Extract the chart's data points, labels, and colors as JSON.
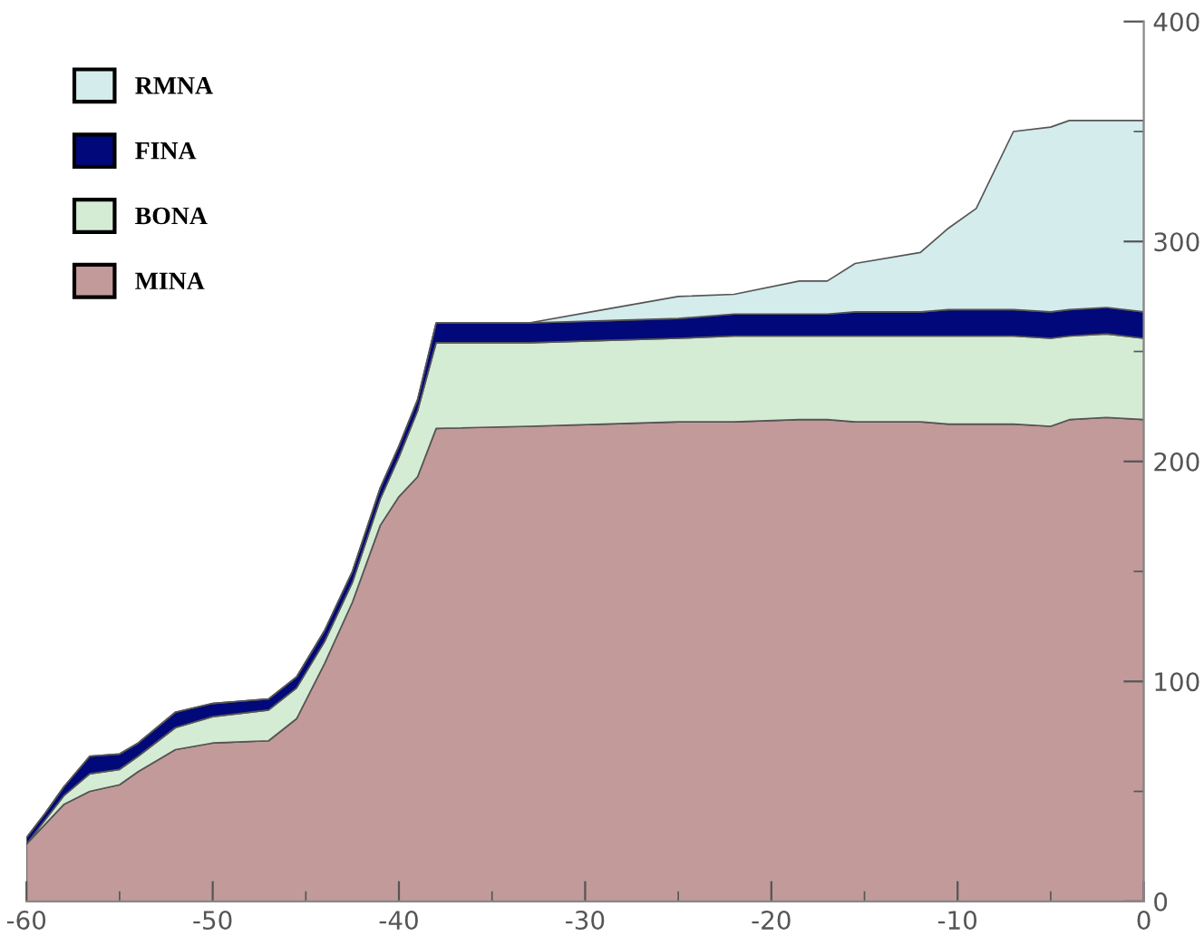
{
  "chart_data": {
    "type": "area",
    "stacked": true,
    "x": [
      -60,
      -59,
      -58,
      -56.6,
      -55,
      -54,
      -52,
      -50,
      -47,
      -45.5,
      -44,
      -42.5,
      -41,
      -40,
      -39,
      -38,
      -33,
      -29,
      -25,
      -22,
      -18.5,
      -17,
      -15.5,
      -12,
      -10.5,
      -9,
      -7,
      -5,
      -4,
      -2,
      0
    ],
    "series": [
      {
        "name": "MINA",
        "color": "#c29a9a",
        "values": [
          26,
          35,
          44,
          50,
          53,
          59,
          69,
          72,
          73,
          83,
          108,
          136,
          171,
          184,
          193,
          215,
          216,
          217,
          218,
          218,
          219,
          219,
          218,
          218,
          217,
          217,
          217,
          216,
          219,
          220,
          219
        ]
      },
      {
        "name": "BONA",
        "color": "#d4ecd4",
        "values": [
          0,
          2,
          4,
          8,
          7,
          7,
          10,
          12,
          14,
          14,
          10,
          9,
          12,
          18,
          30,
          39,
          38,
          38,
          38,
          39,
          38,
          38,
          39,
          39,
          40,
          40,
          40,
          40,
          38,
          38,
          37
        ]
      },
      {
        "name": "FINA",
        "color": "#00087a",
        "values": [
          3,
          3,
          4,
          8,
          7,
          6,
          7,
          6,
          5,
          5,
          5,
          5,
          5,
          5,
          5,
          9,
          9,
          9,
          9,
          10,
          10,
          10,
          11,
          11,
          12,
          12,
          12,
          12,
          12,
          12,
          12
        ]
      },
      {
        "name": "RMNA",
        "color": "#d4ecec",
        "values": [
          0,
          0,
          0,
          0,
          0,
          0,
          0,
          0,
          0,
          0,
          0,
          0,
          0,
          0,
          0,
          0,
          0,
          5,
          10,
          9,
          15,
          15,
          22,
          27,
          37,
          46,
          81,
          84,
          86,
          85,
          87
        ]
      }
    ],
    "xlim": [
      -60,
      0
    ],
    "xticks": [
      -60,
      -50,
      -40,
      -30,
      -20,
      -10,
      0
    ],
    "ylim": [
      0,
      400
    ],
    "yticks": [
      0,
      100,
      200,
      300,
      400
    ],
    "grid": false,
    "legend": "top left"
  }
}
